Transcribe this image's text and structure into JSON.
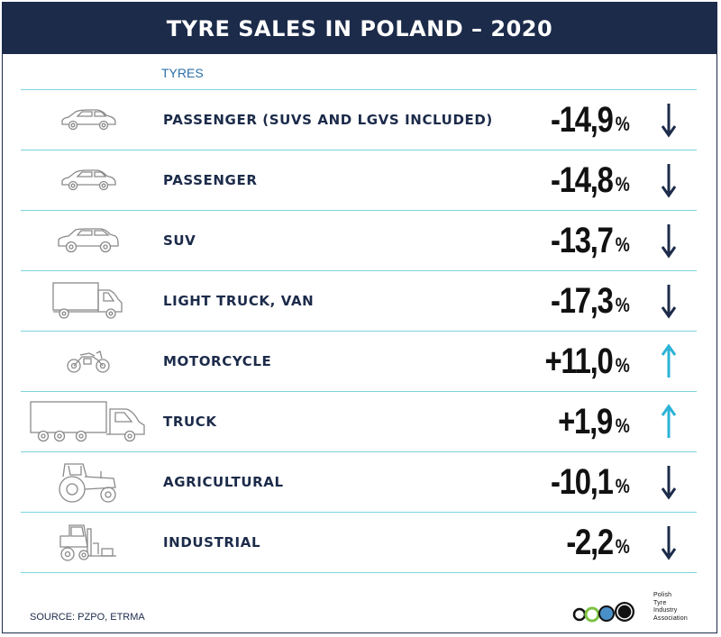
{
  "title": "TYRE SALES IN POLAND – 2020",
  "column_header": "TYRES",
  "unit": "%",
  "source": "SOURCE: PZPO, ETRMA",
  "logo": {
    "lines": [
      "Polish",
      "Tyre",
      "Industry",
      "Association"
    ]
  },
  "colors": {
    "navy": "#1c2b4a",
    "divider": "#7cd4e0",
    "up_arrow": "#2bb3d6",
    "down_arrow": "#1c2b4a"
  },
  "chart_data": {
    "type": "table",
    "title": "TYRE SALES IN POLAND – 2020",
    "categories": [
      "PASSENGER (SUVS AND LGVS INCLUDED)",
      "PASSENGER",
      "SUV",
      "LIGHT TRUCK, VAN",
      "MOTORCYCLE",
      "TRUCK",
      "AGRICULTURAL",
      "INDUSTRIAL"
    ],
    "rows": [
      {
        "label": "PASSENGER (SUVS AND LGVS INCLUDED)",
        "value_text": "-14,9",
        "value": -14.9,
        "direction": "down",
        "icon": "car-icon"
      },
      {
        "label": "PASSENGER",
        "value_text": "-14,8",
        "value": -14.8,
        "direction": "down",
        "icon": "car-icon"
      },
      {
        "label": "SUV",
        "value_text": "-13,7",
        "value": -13.7,
        "direction": "down",
        "icon": "suv-icon"
      },
      {
        "label": "LIGHT TRUCK, VAN",
        "value_text": "-17,3",
        "value": -17.3,
        "direction": "down",
        "icon": "van-icon"
      },
      {
        "label": "MOTORCYCLE",
        "value_text": "+11,0",
        "value": 11.0,
        "direction": "up",
        "icon": "motorcycle-icon"
      },
      {
        "label": "TRUCK",
        "value_text": "+1,9",
        "value": 1.9,
        "direction": "up",
        "icon": "truck-icon"
      },
      {
        "label": "AGRICULTURAL",
        "value_text": "-10,1",
        "value": -10.1,
        "direction": "down",
        "icon": "tractor-icon"
      },
      {
        "label": "INDUSTRIAL",
        "value_text": "-2,2",
        "value": -2.2,
        "direction": "down",
        "icon": "forklift-icon"
      }
    ]
  }
}
